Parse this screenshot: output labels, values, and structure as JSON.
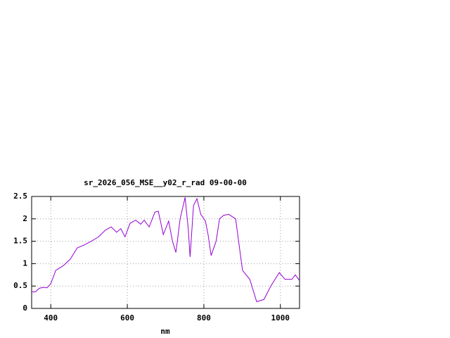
{
  "chart_data": {
    "type": "line",
    "title": "sr_2026_056_MSE__y02_r_rad 09-00-00",
    "xlabel": "nm",
    "x": [
      350,
      360,
      370,
      380,
      390,
      400,
      413,
      432,
      451,
      469,
      488,
      506,
      525,
      543,
      558,
      572,
      583,
      594,
      607,
      622,
      635,
      644,
      657,
      672,
      681,
      694,
      708,
      718,
      727,
      738,
      751,
      759,
      764,
      773,
      782,
      792,
      804,
      811,
      819,
      832,
      841,
      852,
      865,
      883,
      901,
      920,
      938,
      957,
      975,
      997,
      1012,
      1030,
      1039,
      1050
    ],
    "series": [
      {
        "name": "sr_2026_056_MSE__y02_r_rad 09-00-00",
        "color": "#9400d3",
        "values": [
          0.37,
          0.37,
          0.45,
          0.47,
          0.46,
          0.55,
          0.85,
          0.95,
          1.1,
          1.35,
          1.42,
          1.5,
          1.6,
          1.75,
          1.82,
          1.7,
          1.78,
          1.6,
          1.9,
          1.97,
          1.88,
          1.97,
          1.82,
          2.15,
          2.17,
          1.65,
          1.95,
          1.5,
          1.25,
          2.0,
          2.48,
          1.8,
          1.15,
          2.3,
          2.45,
          2.1,
          1.95,
          1.65,
          1.18,
          1.5,
          2.0,
          2.08,
          2.1,
          2.0,
          0.85,
          0.65,
          0.15,
          0.2,
          0.5,
          0.8,
          0.65,
          0.65,
          0.75,
          0.62
        ]
      }
    ],
    "xlim": [
      350,
      1050
    ],
    "xticks": [
      400,
      600,
      800,
      1000
    ],
    "ylim": [
      0,
      2.5
    ],
    "yticks": [
      0,
      0.5,
      1,
      1.5,
      2,
      2.5
    ],
    "grid": true
  }
}
